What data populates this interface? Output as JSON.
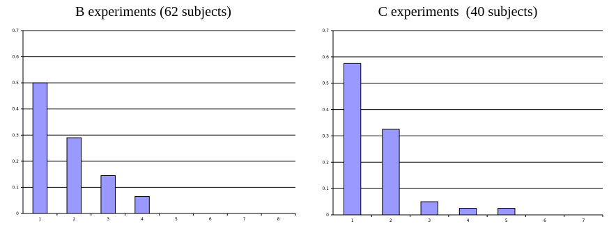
{
  "chart_data": [
    {
      "type": "bar",
      "title": "B experiments (62 subjects)",
      "xlabel": "",
      "ylabel": "",
      "categories": [
        "1",
        "2",
        "3",
        "4",
        "5",
        "6",
        "7",
        "8"
      ],
      "values": [
        0.5,
        0.29,
        0.145,
        0.065,
        0,
        0,
        0,
        0
      ],
      "ylim": [
        0,
        0.7
      ],
      "yticks": [
        "0",
        "0.1",
        "0.2",
        "0.3",
        "0.4",
        "0.5",
        "0.6",
        "0.7"
      ],
      "grid": true,
      "legend": "none",
      "bar_color": "#9999ff"
    },
    {
      "type": "bar",
      "title": "C experiments  (40 subjects)",
      "xlabel": "",
      "ylabel": "",
      "categories": [
        "1",
        "2",
        "3",
        "4",
        "5",
        "6",
        "7"
      ],
      "values": [
        0.575,
        0.325,
        0.05,
        0.025,
        0.025,
        0,
        0
      ],
      "ylim": [
        0,
        0.7
      ],
      "yticks": [
        "0",
        "0.1",
        "0.2",
        "0.3",
        "0.4",
        "0.5",
        "0.6",
        "0.7"
      ],
      "grid": true,
      "legend": "none",
      "bar_color": "#9999ff"
    }
  ]
}
